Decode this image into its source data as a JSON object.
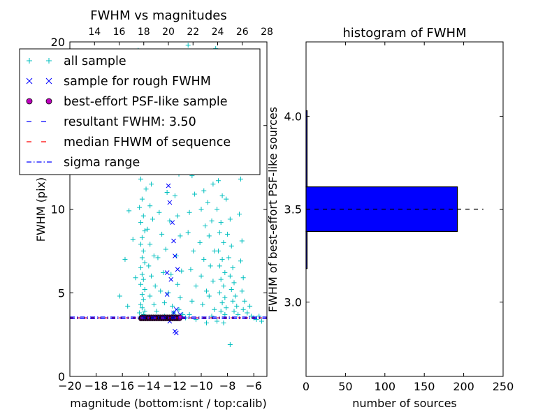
{
  "chart_data": [
    {
      "type": "scatter",
      "title": "FWHM vs magnitudes",
      "xlabel": "magnitude (bottom:isnt / top:calib)",
      "ylabel": "FWHM (pix)",
      "xlim": [
        -20,
        -5
      ],
      "ylim": [
        0,
        20
      ],
      "x_ticks": [
        -20,
        -18,
        -16,
        -14,
        -12,
        -10,
        -8,
        -6
      ],
      "x_tick_labels": [
        "−20",
        "−18",
        "−16",
        "−14",
        "−12",
        "−10",
        "−8",
        "−6"
      ],
      "y_ticks": [
        0,
        5,
        10,
        15,
        20
      ],
      "y_tick_labels": [
        "0",
        "5",
        "10",
        "",
        "20"
      ],
      "top_xlim": [
        12,
        28
      ],
      "top_ticks": [
        14,
        16,
        18,
        20,
        22,
        24,
        26,
        28
      ],
      "top_tick_labels": [
        "14",
        "16",
        "18",
        "20",
        "22",
        "24",
        "26",
        "28"
      ],
      "grid": false,
      "legend_position": "upper-left",
      "legend": [
        {
          "label": "all sample",
          "marker": "+",
          "color": "#00bfbf"
        },
        {
          "label": "sample for rough FWHM",
          "marker": "x",
          "color": "#0000ff"
        },
        {
          "label": "best-effort PSF-like sample",
          "marker": "o",
          "color": "#bf00bf"
        },
        {
          "label": "resultant FWHM: 3.50",
          "linestyle": "dashed",
          "color": "#0000ff"
        },
        {
          "label": "median FHWM of sequence",
          "linestyle": "dashed",
          "color": "#ff0000"
        },
        {
          "label": "sigma range",
          "linestyle": "dashdot",
          "color": "#0000ff"
        }
      ],
      "hlines": [
        {
          "name": "resultant FWHM",
          "y": 3.5,
          "color": "#0000ff",
          "linestyle": "dashed"
        },
        {
          "name": "median FHWM of sequence",
          "y": 3.5,
          "color": "#ff0000",
          "linestyle": "dashed"
        },
        {
          "name": "sigma range upper",
          "y": 3.55,
          "color": "#0000ff",
          "linestyle": "dashdot"
        },
        {
          "name": "sigma range lower",
          "y": 3.45,
          "color": "#0000ff",
          "linestyle": "dashdot"
        }
      ],
      "series": [
        {
          "name": "all sample",
          "marker": "+",
          "color": "#00bfbf",
          "points": [
            [
              -14.8,
              19.5
            ],
            [
              -14.5,
              17.2
            ],
            [
              -14.6,
              15.5
            ],
            [
              -14.4,
              14.1
            ],
            [
              -14.5,
              13.0
            ],
            [
              -14.3,
              12.2
            ],
            [
              -14.6,
              11.8
            ],
            [
              -14.2,
              11.2
            ],
            [
              -14.5,
              10.6
            ],
            [
              -14.7,
              10.1
            ],
            [
              -14.4,
              9.6
            ],
            [
              -14.6,
              9.2
            ],
            [
              -14.3,
              8.7
            ],
            [
              -14.5,
              8.3
            ],
            [
              -14.6,
              7.9
            ],
            [
              -14.4,
              7.5
            ],
            [
              -14.5,
              7.1
            ],
            [
              -14.3,
              6.8
            ],
            [
              -14.6,
              6.5
            ],
            [
              -14.5,
              6.1
            ],
            [
              -14.4,
              5.8
            ],
            [
              -14.6,
              5.5
            ],
            [
              -14.3,
              5.2
            ],
            [
              -14.5,
              4.9
            ],
            [
              -14.4,
              4.6
            ],
            [
              -14.6,
              4.3
            ],
            [
              -14.5,
              4.1
            ],
            [
              -14.3,
              3.9
            ],
            [
              -14.7,
              3.8
            ],
            [
              -14.4,
              3.7
            ],
            [
              -14.0,
              12.8
            ],
            [
              -13.8,
              11.5
            ],
            [
              -13.9,
              10.2
            ],
            [
              -13.7,
              9.4
            ],
            [
              -14.1,
              8.8
            ],
            [
              -13.9,
              7.9
            ],
            [
              -13.6,
              7.2
            ],
            [
              -14.0,
              6.6
            ],
            [
              -13.8,
              6.0
            ],
            [
              -13.5,
              5.4
            ],
            [
              -13.9,
              4.8
            ],
            [
              -13.6,
              4.3
            ],
            [
              -13.2,
              9.8
            ],
            [
              -13.0,
              8.5
            ],
            [
              -13.3,
              7.1
            ],
            [
              -12.9,
              6.2
            ],
            [
              -13.1,
              5.1
            ],
            [
              -12.8,
              4.4
            ],
            [
              -12.6,
              11.0
            ],
            [
              -12.4,
              9.3
            ],
            [
              -12.7,
              7.6
            ],
            [
              -12.3,
              6.1
            ],
            [
              -12.5,
              5.0
            ],
            [
              -12.2,
              4.2
            ],
            [
              -11.9,
              13.5
            ],
            [
              -11.7,
              12.1
            ],
            [
              -12.0,
              10.8
            ],
            [
              -11.8,
              9.6
            ],
            [
              -11.6,
              8.4
            ],
            [
              -11.9,
              7.2
            ],
            [
              -11.5,
              6.3
            ],
            [
              -11.8,
              5.5
            ],
            [
              -11.6,
              4.7
            ],
            [
              -11.7,
              4.0
            ],
            [
              -13.4,
              3.9
            ],
            [
              -12.1,
              3.8
            ],
            [
              -11.4,
              3.7
            ],
            [
              -15.5,
              9.9
            ],
            [
              -15.2,
              8.2
            ],
            [
              -15.8,
              7.0
            ],
            [
              -15.0,
              5.9
            ],
            [
              -16.2,
              4.8
            ],
            [
              -15.6,
              4.2
            ],
            [
              -11.0,
              19.8
            ],
            [
              -10.8,
              18.4
            ],
            [
              -11.2,
              16.9
            ],
            [
              -10.6,
              15.6
            ],
            [
              -10.9,
              14.3
            ],
            [
              -11.1,
              13.2
            ],
            [
              -10.7,
              12.0
            ],
            [
              -10.5,
              10.9
            ],
            [
              -10.9,
              9.8
            ],
            [
              -11.0,
              8.6
            ],
            [
              -10.6,
              7.5
            ],
            [
              -10.8,
              6.4
            ],
            [
              -10.4,
              5.4
            ],
            [
              -10.7,
              4.5
            ],
            [
              -10.2,
              17.7
            ],
            [
              -10.1,
              16.0
            ],
            [
              -10.3,
              14.6
            ],
            [
              -9.9,
              13.4
            ],
            [
              -10.2,
              12.3
            ],
            [
              -9.8,
              11.1
            ],
            [
              -10.0,
              10.0
            ],
            [
              -9.7,
              9.0
            ],
            [
              -10.1,
              8.0
            ],
            [
              -9.8,
              7.0
            ],
            [
              -10.0,
              6.0
            ],
            [
              -9.6,
              5.1
            ],
            [
              -9.9,
              4.3
            ],
            [
              -9.5,
              18.9
            ],
            [
              -9.3,
              17.1
            ],
            [
              -9.6,
              15.4
            ],
            [
              -9.2,
              14.0
            ],
            [
              -9.4,
              12.6
            ],
            [
              -9.1,
              11.5
            ],
            [
              -9.5,
              10.4
            ],
            [
              -9.2,
              9.3
            ],
            [
              -9.4,
              8.4
            ],
            [
              -9.0,
              7.5
            ],
            [
              -9.3,
              6.6
            ],
            [
              -9.1,
              5.7
            ],
            [
              -9.4,
              4.8
            ],
            [
              -9.0,
              4.0
            ],
            [
              -8.9,
              19.6
            ],
            [
              -8.7,
              18.0
            ],
            [
              -8.8,
              16.5
            ],
            [
              -8.6,
              15.2
            ],
            [
              -8.9,
              13.9
            ],
            [
              -8.5,
              12.8
            ],
            [
              -8.7,
              11.7
            ],
            [
              -8.4,
              10.8
            ],
            [
              -8.8,
              10.0
            ],
            [
              -8.5,
              9.2
            ],
            [
              -8.6,
              8.6
            ],
            [
              -8.3,
              8.0
            ],
            [
              -8.7,
              7.5
            ],
            [
              -8.4,
              7.0
            ],
            [
              -8.6,
              6.6
            ],
            [
              -8.2,
              6.2
            ],
            [
              -8.5,
              5.8
            ],
            [
              -8.3,
              5.4
            ],
            [
              -8.6,
              5.0
            ],
            [
              -8.2,
              4.7
            ],
            [
              -8.4,
              4.4
            ],
            [
              -8.1,
              4.1
            ],
            [
              -8.5,
              3.9
            ],
            [
              -8.2,
              3.7
            ],
            [
              -8.0,
              14.5
            ],
            [
              -7.9,
              12.4
            ],
            [
              -8.1,
              10.6
            ],
            [
              -7.8,
              9.4
            ],
            [
              -8.0,
              8.5
            ],
            [
              -7.7,
              7.8
            ],
            [
              -7.9,
              7.1
            ],
            [
              -7.6,
              6.5
            ],
            [
              -7.8,
              6.0
            ],
            [
              -7.5,
              5.6
            ],
            [
              -7.7,
              5.2
            ],
            [
              -7.4,
              4.8
            ],
            [
              -7.6,
              4.5
            ],
            [
              -7.3,
              4.2
            ],
            [
              -7.5,
              3.9
            ],
            [
              -7.2,
              3.7
            ],
            [
              -7.0,
              11.8
            ],
            [
              -7.1,
              9.7
            ],
            [
              -6.9,
              8.1
            ],
            [
              -7.0,
              6.9
            ],
            [
              -6.8,
              5.9
            ],
            [
              -6.9,
              5.1
            ],
            [
              -6.7,
              4.5
            ],
            [
              -6.8,
              4.0
            ],
            [
              -6.5,
              3.8
            ],
            [
              -6.3,
              4.2
            ],
            [
              -6.2,
              3.6
            ],
            [
              -6.0,
              3.5
            ],
            [
              -5.8,
              3.4
            ],
            [
              -5.6,
              3.6
            ],
            [
              -5.4,
              3.3
            ],
            [
              -7.4,
              16.7
            ],
            [
              -7.2,
              14.1
            ],
            [
              -7.6,
              18.6
            ],
            [
              -9.2,
              3.6
            ],
            [
              -10.4,
              3.4
            ],
            [
              -11.2,
              3.5
            ],
            [
              -12.8,
              3.6
            ],
            [
              -13.6,
              3.5
            ],
            [
              -8.8,
              3.3
            ],
            [
              -7.8,
              1.9
            ],
            [
              -9.6,
              3.2
            ],
            [
              -10.9,
              3.7
            ],
            [
              -8.3,
              3.2
            ]
          ]
        },
        {
          "name": "sample for rough FWHM",
          "marker": "x",
          "color": "#0000ff",
          "points": [
            [
              -12.5,
              11.4
            ],
            [
              -12.4,
              10.4
            ],
            [
              -11.8,
              12.5
            ],
            [
              -12.2,
              9.2
            ],
            [
              -12.1,
              8.1
            ],
            [
              -12.0,
              7.2
            ],
            [
              -12.6,
              6.2
            ],
            [
              -11.8,
              6.4
            ],
            [
              -12.3,
              5.8
            ],
            [
              -12.6,
              4.9
            ],
            [
              -11.9,
              4.0
            ],
            [
              -12.1,
              3.8
            ],
            [
              -11.6,
              3.7
            ],
            [
              -12.0,
              2.7
            ],
            [
              -11.9,
              2.6
            ],
            [
              -12.4,
              3.3
            ],
            [
              -13.0,
              3.5
            ]
          ]
        },
        {
          "name": "best-effort PSF-like sample",
          "marker": "o",
          "color": "#bf00bf",
          "x_range": [
            -14.6,
            -11.6
          ],
          "y": 3.5,
          "count": 193
        }
      ]
    },
    {
      "type": "bar",
      "orientation": "horizontal",
      "title": "histogram of FWHM",
      "xlabel": "number of sources",
      "ylabel": "FWHM of best-effort PSF-like sources",
      "xlim": [
        0,
        250
      ],
      "ylim": [
        2.6,
        4.4
      ],
      "x_ticks": [
        0,
        50,
        100,
        150,
        200,
        250
      ],
      "y_ticks": [
        3.0,
        3.5,
        4.0
      ],
      "y_tick_labels": [
        "3.0",
        "3.5",
        "4.0"
      ],
      "bin_edges": [
        3.18,
        3.38,
        3.62,
        4.03
      ],
      "values": [
        1,
        192,
        1
      ],
      "bar_color": "#0000ff",
      "reference_line": {
        "y": 3.5,
        "x_range": [
          0,
          225
        ],
        "linestyle": "dashed",
        "color": "#000000"
      },
      "grid": false
    }
  ]
}
